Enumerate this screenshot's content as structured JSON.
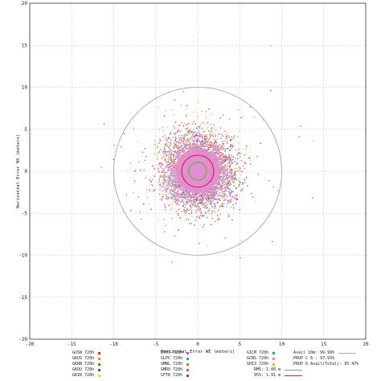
{
  "chart_data": {
    "type": "scatter",
    "xlabel": "Horizontal Error WE (meters)",
    "ylabel": "Horizontal Error NS (meters)",
    "xlim": [
      -20,
      20
    ],
    "ylim": [
      -20,
      20
    ],
    "xticks": [
      -20,
      -15,
      -10,
      -5,
      0,
      5,
      10,
      15,
      20
    ],
    "yticks": [
      -20,
      -15,
      -10,
      -5,
      0,
      5,
      10,
      15,
      20
    ],
    "grid": true,
    "series": [
      {
        "name": "GUSN 720h",
        "color": "#ff2020",
        "spread": 2.4
      },
      {
        "name": "GKUS 720h",
        "color": "#ff8c00",
        "spread": 2.3
      },
      {
        "name": "GKRN 720h",
        "color": "#2a9d2a",
        "spread": 2.0
      },
      {
        "name": "GKOU 720h",
        "color": "#3050e0",
        "spread": 2.1
      },
      {
        "name": "GKIR 720h",
        "color": "#ffd400",
        "spread": 2.2
      },
      {
        "name": "GTHT 720h",
        "color": "#b060d0",
        "spread": 2.0
      },
      {
        "name": "GLPC 720h",
        "color": "#20b0b0",
        "spread": 1.9
      },
      {
        "name": "GMNL 720h",
        "color": "#909020",
        "spread": 2.0
      },
      {
        "name": "GMRO 720h",
        "color": "#e040a0",
        "spread": 1.8
      },
      {
        "name": "GFTR 720h",
        "color": "#8b4513",
        "spread": 1.9
      },
      {
        "name": "GICM 720h",
        "color": "#00c060",
        "spread": 2.0
      },
      {
        "name": "GCNS 720h",
        "color": "#ff60ff",
        "spread": 1.8
      },
      {
        "name": "GHIZ 720h",
        "color": "#ffb000",
        "spread": 2.2
      }
    ],
    "core_color": "#e090d0",
    "avail_circle_radius": 10,
    "rms_radius": 1.06,
    "r95_radius": 1.91,
    "rms_color": "#6ab04a",
    "r95_color": "#e02040",
    "stats": {
      "avail": "Avail 10m: 99.99%",
      "prob": "PROP C 6 : 97.93%",
      "prob_total": "PROP 6 Avail(Total): 95.47%",
      "rms": "RMS: 1.06 m",
      "r95": "95%: 1.91 m"
    }
  }
}
